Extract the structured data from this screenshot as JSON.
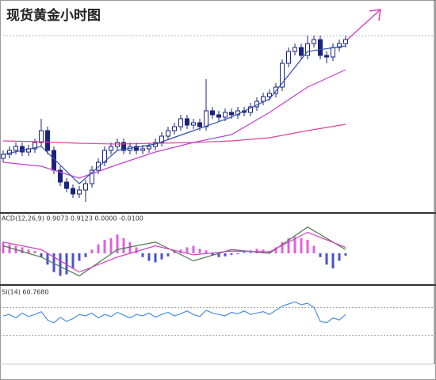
{
  "chart_data": [
    {
      "type": "candlestick",
      "title": "现货黄金小时图",
      "open": [
        60,
        65,
        70,
        75,
        68,
        72,
        80,
        95,
        70,
        45,
        30,
        22,
        15,
        20,
        28,
        45,
        55,
        70,
        75,
        80,
        70,
        75,
        70,
        72,
        75,
        80,
        88,
        95,
        100,
        110,
        102,
        105,
        100,
        120,
        115,
        112,
        118,
        115,
        120,
        118,
        125,
        132,
        138,
        142,
        150,
        180,
        195,
        200,
        190,
        205,
        210,
        190,
        188,
        200,
        205
      ],
      "high": [
        70,
        75,
        80,
        80,
        77,
        85,
        110,
        100,
        75,
        50,
        35,
        27,
        25,
        33,
        50,
        60,
        75,
        80,
        85,
        85,
        80,
        80,
        77,
        80,
        85,
        93,
        100,
        105,
        115,
        115,
        110,
        110,
        160,
        125,
        120,
        123,
        123,
        125,
        125,
        130,
        137,
        143,
        147,
        155,
        185,
        200,
        205,
        205,
        215,
        215,
        215,
        195,
        205,
        210,
        215
      ],
      "low": [
        55,
        60,
        65,
        63,
        63,
        67,
        75,
        65,
        40,
        25,
        17,
        10,
        10,
        5,
        23,
        40,
        50,
        65,
        70,
        65,
        65,
        65,
        65,
        67,
        70,
        75,
        83,
        90,
        95,
        97,
        97,
        95,
        95,
        110,
        107,
        107,
        110,
        110,
        113,
        113,
        120,
        127,
        133,
        137,
        145,
        175,
        190,
        185,
        185,
        200,
        185,
        180,
        183,
        195,
        200
      ],
      "close": [
        65,
        70,
        75,
        68,
        72,
        80,
        95,
        70,
        45,
        30,
        22,
        15,
        20,
        28,
        45,
        55,
        70,
        75,
        80,
        70,
        75,
        70,
        72,
        75,
        80,
        88,
        95,
        100,
        110,
        102,
        105,
        100,
        120,
        115,
        112,
        118,
        115,
        120,
        118,
        125,
        132,
        138,
        142,
        150,
        180,
        195,
        200,
        190,
        205,
        210,
        190,
        188,
        200,
        205,
        210
      ],
      "up_color": "#1a237e",
      "down_color": "#1a237e",
      "series": [
        {
          "x": [
            0,
            6,
            12,
            18,
            24,
            30,
            36,
            42,
            48,
            54
          ],
          "values": [
            82,
            81,
            79,
            78,
            79,
            80,
            82,
            86,
            95,
            103
          ],
          "color": "#e0409a"
        },
        {
          "x": [
            0,
            6,
            12,
            18,
            24,
            30,
            36,
            42,
            48,
            54
          ],
          "values": [
            55,
            50,
            35,
            52,
            68,
            80,
            90,
            118,
            150,
            172
          ],
          "color": "#c040d0"
        },
        {
          "x": [
            0,
            6,
            12,
            18,
            24,
            30,
            36,
            42,
            48,
            54
          ],
          "values": [
            65,
            75,
            28,
            70,
            78,
            95,
            112,
            135,
            195,
            202
          ],
          "color": "#3050b0"
        }
      ],
      "ylim": [
        0,
        220
      ]
    },
    {
      "type": "macd",
      "title": "ACD(12,26,9) 0.9073 0.9123 0.0000 -0.0100",
      "values": [
        15,
        12,
        10,
        8,
        5,
        3,
        -5,
        -15,
        -25,
        -30,
        -28,
        -20,
        -10,
        -5,
        5,
        12,
        18,
        20,
        25,
        20,
        15,
        8,
        -5,
        -10,
        -12,
        -8,
        -4,
        3,
        5,
        8,
        10,
        6,
        4,
        -3,
        -5,
        -4,
        -2,
        -1,
        2,
        4,
        6,
        5,
        3,
        8,
        15,
        20,
        22,
        20,
        18,
        10,
        -5,
        -15,
        -20,
        -10,
        -3
      ],
      "pos_color": "#e060e0",
      "neg_color": "#4a50d0",
      "series": [
        {
          "x": [
            0,
            6,
            12,
            18,
            24,
            30,
            36,
            42,
            48,
            54
          ],
          "values": [
            10,
            -5,
            -30,
            5,
            15,
            -10,
            5,
            0,
            35,
            5
          ],
          "color": "#4a7a4a"
        },
        {
          "x": [
            0,
            6,
            12,
            18,
            24,
            30,
            36,
            42,
            48,
            54
          ],
          "values": [
            15,
            5,
            -25,
            -5,
            10,
            -2,
            3,
            2,
            28,
            8
          ],
          "color": "#d040c0"
        }
      ],
      "ylim": [
        -40,
        40
      ]
    },
    {
      "type": "line",
      "title": "SI(14) 60.7680",
      "values": [
        58,
        60,
        55,
        62,
        57,
        60,
        64,
        52,
        48,
        56,
        50,
        54,
        60,
        58,
        62,
        55,
        60,
        57,
        63,
        59,
        55,
        60,
        58,
        62,
        56,
        60,
        63,
        58,
        61,
        65,
        60,
        57,
        66,
        62,
        60,
        58,
        63,
        61,
        65,
        60,
        62,
        64,
        60,
        66,
        72,
        75,
        78,
        74,
        76,
        70,
        50,
        48,
        55,
        52,
        60
      ],
      "color": "#4a8ee0",
      "levels": [
        70,
        30
      ],
      "ylim": [
        0,
        100
      ]
    }
  ]
}
